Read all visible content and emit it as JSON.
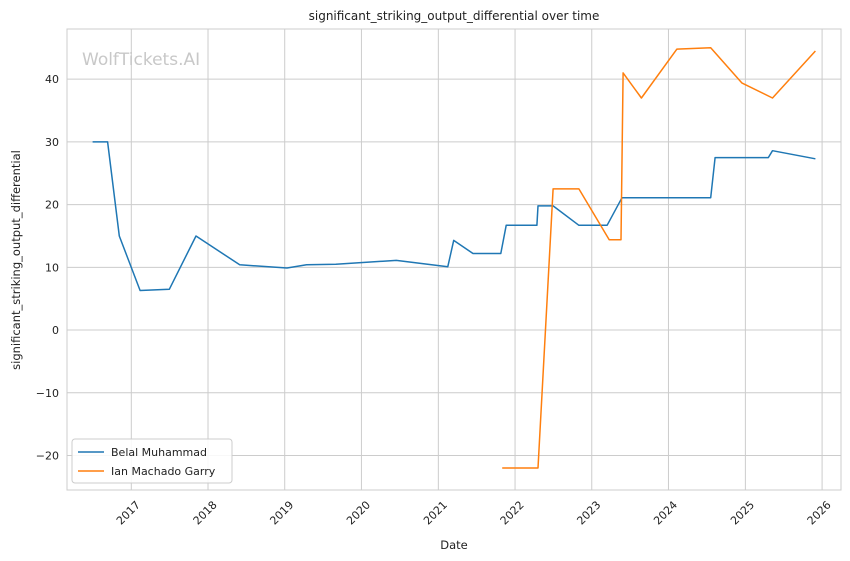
{
  "chart_data": {
    "type": "line",
    "title": "significant_striking_output_differential over time",
    "xlabel": "Date",
    "ylabel": "significant_striking_output_differential",
    "watermark": "WolfTickets.AI",
    "xlim": [
      "2016-03-01",
      "2026-04-01"
    ],
    "ylim": [
      -25.5,
      48
    ],
    "x_ticks": [
      "2017",
      "2018",
      "2019",
      "2020",
      "2021",
      "2022",
      "2023",
      "2024",
      "2025",
      "2026"
    ],
    "y_ticks": [
      -20,
      -10,
      0,
      10,
      20,
      30,
      40
    ],
    "grid": true,
    "legend_position": "lower-left",
    "series": [
      {
        "name": "Belal Muhammad",
        "color": "#1f77b4",
        "points": [
          [
            "2016-07-01",
            30.0
          ],
          [
            "2016-09-10",
            30.0
          ],
          [
            "2016-11-05",
            15.0
          ],
          [
            "2017-02-12",
            6.3
          ],
          [
            "2017-07-01",
            6.5
          ],
          [
            "2017-11-05",
            15.0
          ],
          [
            "2018-06-01",
            10.4
          ],
          [
            "2019-01-12",
            9.9
          ],
          [
            "2019-04-15",
            10.4
          ],
          [
            "2019-09-01",
            10.5
          ],
          [
            "2020-06-15",
            11.1
          ],
          [
            "2021-02-15",
            10.1
          ],
          [
            "2021-03-15",
            14.3
          ],
          [
            "2021-06-15",
            12.2
          ],
          [
            "2021-10-25",
            12.2
          ],
          [
            "2021-11-20",
            16.7
          ],
          [
            "2022-04-15",
            16.7
          ],
          [
            "2022-04-20",
            19.8
          ],
          [
            "2022-07-01",
            19.8
          ],
          [
            "2022-11-01",
            16.7
          ],
          [
            "2023-03-15",
            16.7
          ],
          [
            "2023-05-25",
            21.1
          ],
          [
            "2024-07-20",
            21.1
          ],
          [
            "2024-08-10",
            27.5
          ],
          [
            "2025-04-20",
            27.5
          ],
          [
            "2025-05-10",
            28.6
          ],
          [
            "2025-11-30",
            27.3
          ]
        ]
      },
      {
        "name": "Ian Machado Garry",
        "color": "#ff7f0e",
        "points": [
          [
            "2021-11-01",
            -22.0
          ],
          [
            "2022-04-20",
            -22.0
          ],
          [
            "2022-07-01",
            22.5
          ],
          [
            "2022-11-01",
            22.5
          ],
          [
            "2023-03-25",
            14.4
          ],
          [
            "2023-05-20",
            14.4
          ],
          [
            "2023-05-30",
            41.0
          ],
          [
            "2023-08-25",
            37.0
          ],
          [
            "2024-02-10",
            44.8
          ],
          [
            "2024-07-20",
            45.0
          ],
          [
            "2024-12-15",
            39.4
          ],
          [
            "2025-05-10",
            37.0
          ],
          [
            "2025-11-30",
            44.5
          ]
        ]
      }
    ]
  }
}
